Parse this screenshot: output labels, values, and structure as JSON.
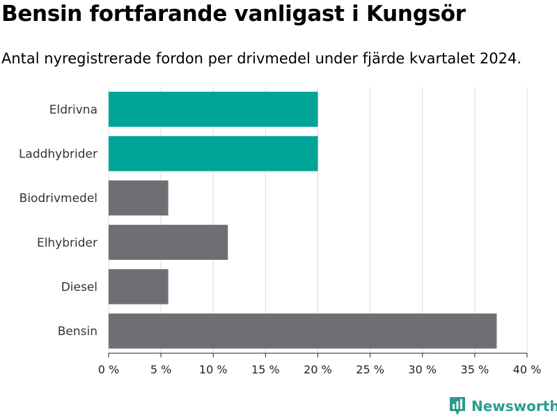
{
  "chart_data": {
    "type": "bar",
    "orientation": "horizontal",
    "title": "Bensin fortfarande vanligast i Kungsör",
    "subtitle": "Antal nyregistrerade fordon per drivmedel under fjärde kvartalet 2024.",
    "categories": [
      "Eldrivna",
      "Laddhybrider",
      "Biodrivmedel",
      "Elhybrider",
      "Diesel",
      "Bensin"
    ],
    "values": [
      20.0,
      20.0,
      5.7,
      11.4,
      5.7,
      37.1
    ],
    "bar_colors": [
      "#00a499",
      "#00a499",
      "#6e6e74",
      "#6e6e74",
      "#6e6e74",
      "#6e6e74"
    ],
    "xlim": [
      0,
      40
    ],
    "xticks": [
      0,
      5,
      10,
      15,
      20,
      25,
      30,
      35,
      40
    ],
    "xtick_labels": [
      "0 %",
      "5 %",
      "10 %",
      "15 %",
      "20 %",
      "25 %",
      "30 %",
      "35 %",
      "40 %"
    ],
    "grid": true
  },
  "branding": {
    "name": "Newsworthy",
    "color": "#2a9d8f"
  }
}
